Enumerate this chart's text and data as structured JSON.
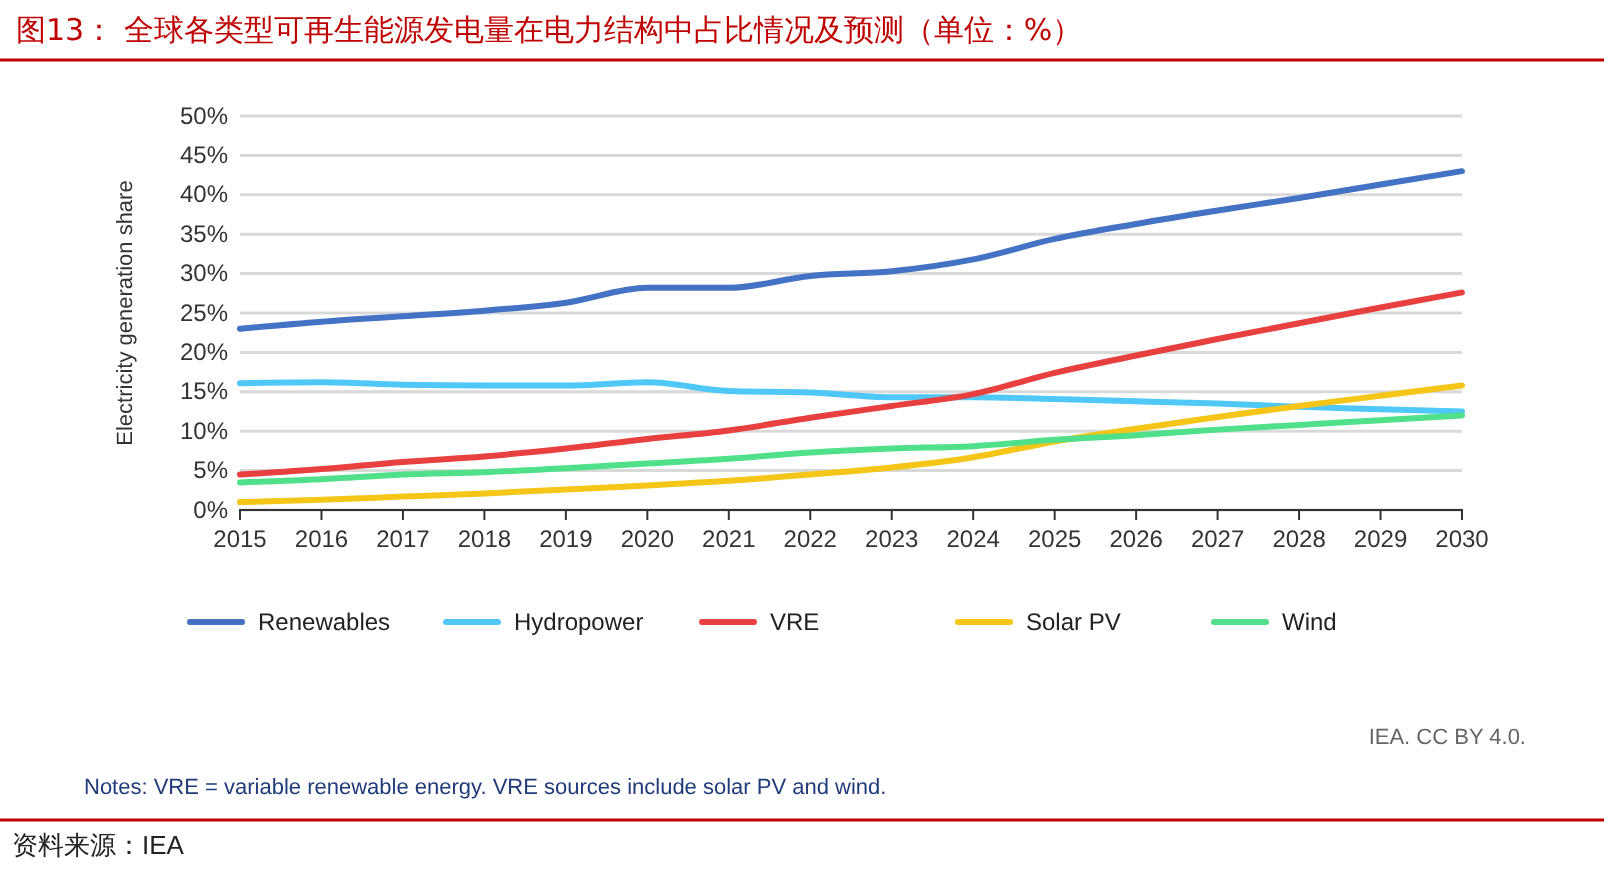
{
  "chart_data": {
    "type": "line",
    "title": "图13：  全球各类型可再生能源发电量在电力结构中占比情况及预测（单位：%）",
    "ylabel": "Electricity generation share",
    "x": [
      2015,
      2016,
      2017,
      2018,
      2019,
      2020,
      2021,
      2022,
      2023,
      2024,
      2025,
      2026,
      2027,
      2028,
      2029,
      2030
    ],
    "series": [
      {
        "name": "Renewables",
        "color": "#4472c4",
        "values": [
          23,
          23.9,
          24.6,
          25.3,
          26.3,
          28.2,
          28.2,
          29.7,
          30.3,
          31.8,
          34.4,
          36.3,
          38,
          39.6,
          41.3,
          43
        ]
      },
      {
        "name": "Hydropower",
        "color": "#4fc8f7",
        "values": [
          16.1,
          16.2,
          15.9,
          15.8,
          15.8,
          16.2,
          15.1,
          14.9,
          14.3,
          14.3,
          14.1,
          13.8,
          13.5,
          13.1,
          12.8,
          12.5
        ]
      },
      {
        "name": "VRE",
        "color": "#e8403e",
        "values": [
          4.5,
          5.2,
          6.1,
          6.8,
          7.8,
          9,
          10.1,
          11.7,
          13.2,
          14.7,
          17.4,
          19.6,
          21.7,
          23.7,
          25.7,
          27.6
        ]
      },
      {
        "name": "Solar PV",
        "color": "#f5c518",
        "values": [
          1,
          1.3,
          1.7,
          2.1,
          2.6,
          3.1,
          3.7,
          4.5,
          5.4,
          6.7,
          8.7,
          10.3,
          11.8,
          13.2,
          14.5,
          15.8
        ]
      },
      {
        "name": "Wind",
        "color": "#50e08a",
        "values": [
          3.5,
          3.9,
          4.5,
          4.8,
          5.3,
          5.9,
          6.5,
          7.3,
          7.8,
          8.1,
          8.9,
          9.5,
          10.2,
          10.8,
          11.4,
          12
        ]
      }
    ],
    "xlim": [
      2015,
      2030
    ],
    "xticks": [
      2015,
      2016,
      2017,
      2018,
      2019,
      2020,
      2021,
      2022,
      2023,
      2024,
      2025,
      2026,
      2027,
      2028,
      2029,
      2030
    ],
    "ylim": [
      0,
      50
    ],
    "yticks": [
      {
        "value": 0,
        "label": "0%"
      },
      {
        "value": 5,
        "label": "5%"
      },
      {
        "value": 10,
        "label": "10%"
      },
      {
        "value": 15,
        "label": "15%"
      },
      {
        "value": 20,
        "label": "20%"
      },
      {
        "value": 25,
        "label": "25%"
      },
      {
        "value": 30,
        "label": "30%"
      },
      {
        "value": 35,
        "label": "35%"
      },
      {
        "value": 40,
        "label": "40%"
      },
      {
        "value": 45,
        "label": "45%"
      },
      {
        "value": 50,
        "label": "50%"
      }
    ],
    "grid": "y",
    "legend": "bottom",
    "marker": "none",
    "line_style": "solid",
    "annotations": [
      "IEA. CC BY 4.0.",
      "Notes: VRE = variable renewable energy. VRE sources include solar PV and wind.",
      "资料来源：IEA"
    ]
  }
}
